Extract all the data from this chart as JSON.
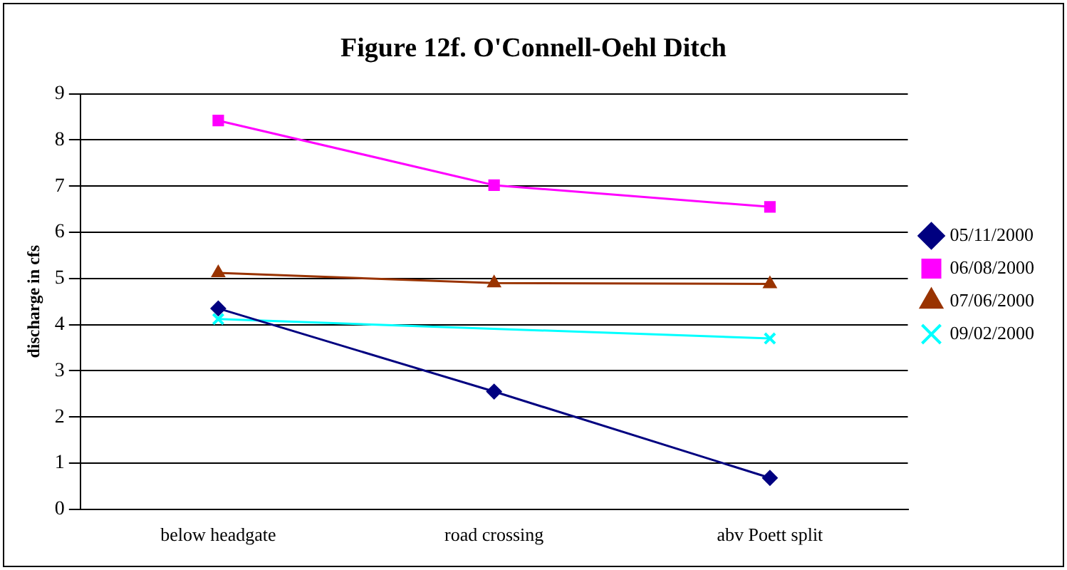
{
  "chart_data": {
    "type": "line",
    "title": "Figure 12f. O'Connell-Oehl Ditch",
    "ylabel": "discharge in cfs",
    "categories": [
      "below headgate",
      "road crossing",
      "abv Poett split"
    ],
    "ylim": [
      0,
      9
    ],
    "yticks": [
      0,
      1,
      2,
      3,
      4,
      5,
      6,
      7,
      8,
      9
    ],
    "grid": "y",
    "legend": "right",
    "series": [
      {
        "name": "05/11/2000",
        "color": "#000080",
        "marker": "diamond",
        "values": [
          4.35,
          2.55,
          0.68
        ]
      },
      {
        "name": "06/08/2000",
        "color": "#ff00ff",
        "marker": "square",
        "values": [
          8.42,
          7.02,
          6.55
        ]
      },
      {
        "name": "07/06/2000",
        "color": "#993300",
        "marker": "triangle",
        "values": [
          5.12,
          4.9,
          4.88
        ]
      },
      {
        "name": "09/02/2000",
        "color": "#00ffff",
        "marker": "cross",
        "values": [
          4.12,
          null,
          3.7
        ]
      }
    ]
  }
}
